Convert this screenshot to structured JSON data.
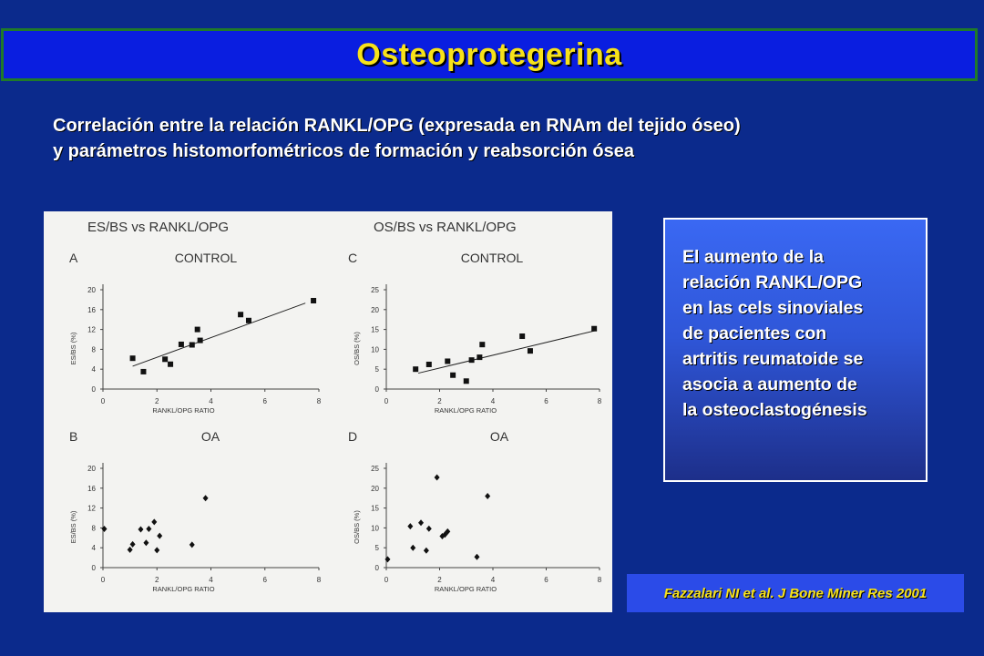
{
  "slide": {
    "title": "Osteoprotegerina",
    "subtitle_lines": [
      "Correlación entre la relación RANKL/OPG (expresada en RNAm del tejido óseo)",
      "y parámetros histomorfométricos de formación y reabsorción ósea"
    ],
    "note_lines": [
      "El aumento de la",
      "relación RANKL/OPG",
      "en las cels sinoviales",
      "de pacientes con",
      "artritis reumatoide se",
      "asocia a aumento de",
      "la osteoclastogénesis"
    ],
    "citation": "Fazzalari NI et al. J Bone Miner Res 2001"
  },
  "figure": {
    "column_titles": [
      "ES/BS vs RANKL/OPG",
      "OS/BS vs RANKL/OPG"
    ]
  },
  "chart_data": [
    {
      "type": "scatter",
      "panel": "A",
      "title": "CONTROL",
      "xlabel": "RANKL/OPG RATIO",
      "ylabel": "ES/BS (%)",
      "xlim": [
        0,
        8
      ],
      "ylim": [
        0,
        20
      ],
      "xticks": [
        0,
        2,
        4,
        6,
        8
      ],
      "yticks": [
        0,
        4,
        8,
        12,
        16,
        20
      ],
      "marker": "square",
      "trendline": [
        [
          1.1,
          4.6
        ],
        [
          7.5,
          17.3
        ]
      ],
      "points": [
        [
          1.1,
          6.2
        ],
        [
          1.5,
          3.5
        ],
        [
          2.3,
          6.0
        ],
        [
          2.5,
          5.0
        ],
        [
          2.9,
          9.0
        ],
        [
          3.3,
          8.9
        ],
        [
          3.5,
          12.0
        ],
        [
          3.6,
          9.8
        ],
        [
          5.1,
          15.0
        ],
        [
          5.4,
          13.8
        ],
        [
          7.8,
          17.8
        ]
      ]
    },
    {
      "type": "scatter",
      "panel": "C",
      "title": "CONTROL",
      "xlabel": "RANKL/OPG RATIO",
      "ylabel": "OS/BS (%)",
      "xlim": [
        0,
        8
      ],
      "ylim": [
        0,
        25
      ],
      "xticks": [
        0,
        2,
        4,
        6,
        8
      ],
      "yticks": [
        0,
        5,
        10,
        15,
        20,
        25
      ],
      "marker": "square",
      "trendline": [
        [
          1.2,
          4.0
        ],
        [
          7.9,
          14.8
        ]
      ],
      "points": [
        [
          1.1,
          5.0
        ],
        [
          1.6,
          6.2
        ],
        [
          2.3,
          7.0
        ],
        [
          2.5,
          3.5
        ],
        [
          3.0,
          2.0
        ],
        [
          3.2,
          7.3
        ],
        [
          3.5,
          8.0
        ],
        [
          3.6,
          11.2
        ],
        [
          5.1,
          13.3
        ],
        [
          5.4,
          9.6
        ],
        [
          7.8,
          15.2
        ]
      ]
    },
    {
      "type": "scatter",
      "panel": "B",
      "title": "OA",
      "xlabel": "RANKL/OPG RATIO",
      "ylabel": "ES/BS (%)",
      "xlim": [
        0,
        8
      ],
      "ylim": [
        0,
        20
      ],
      "xticks": [
        0,
        2,
        4,
        6,
        8
      ],
      "yticks": [
        0,
        4,
        8,
        12,
        16,
        20
      ],
      "marker": "diamond",
      "points": [
        [
          0.05,
          7.8
        ],
        [
          1.0,
          3.6
        ],
        [
          1.1,
          4.7
        ],
        [
          1.4,
          7.7
        ],
        [
          1.6,
          5.0
        ],
        [
          1.7,
          7.8
        ],
        [
          1.9,
          9.2
        ],
        [
          2.0,
          3.5
        ],
        [
          2.1,
          6.4
        ],
        [
          3.3,
          4.6
        ],
        [
          3.8,
          14.0
        ]
      ]
    },
    {
      "type": "scatter",
      "panel": "D",
      "title": "OA",
      "xlabel": "RANKL/OPG RATIO",
      "ylabel": "OS/BS (%)",
      "xlim": [
        0,
        8
      ],
      "ylim": [
        0,
        25
      ],
      "xticks": [
        0,
        2,
        4,
        6,
        8
      ],
      "yticks": [
        0,
        5,
        10,
        15,
        20,
        25
      ],
      "marker": "diamond",
      "points": [
        [
          0.05,
          2.1
        ],
        [
          0.9,
          10.4
        ],
        [
          1.0,
          5.0
        ],
        [
          1.3,
          11.3
        ],
        [
          1.5,
          4.3
        ],
        [
          1.6,
          9.8
        ],
        [
          1.9,
          22.7
        ],
        [
          2.1,
          7.9
        ],
        [
          2.2,
          8.3
        ],
        [
          2.3,
          9.1
        ],
        [
          3.4,
          2.7
        ],
        [
          3.8,
          18.0
        ]
      ]
    }
  ]
}
